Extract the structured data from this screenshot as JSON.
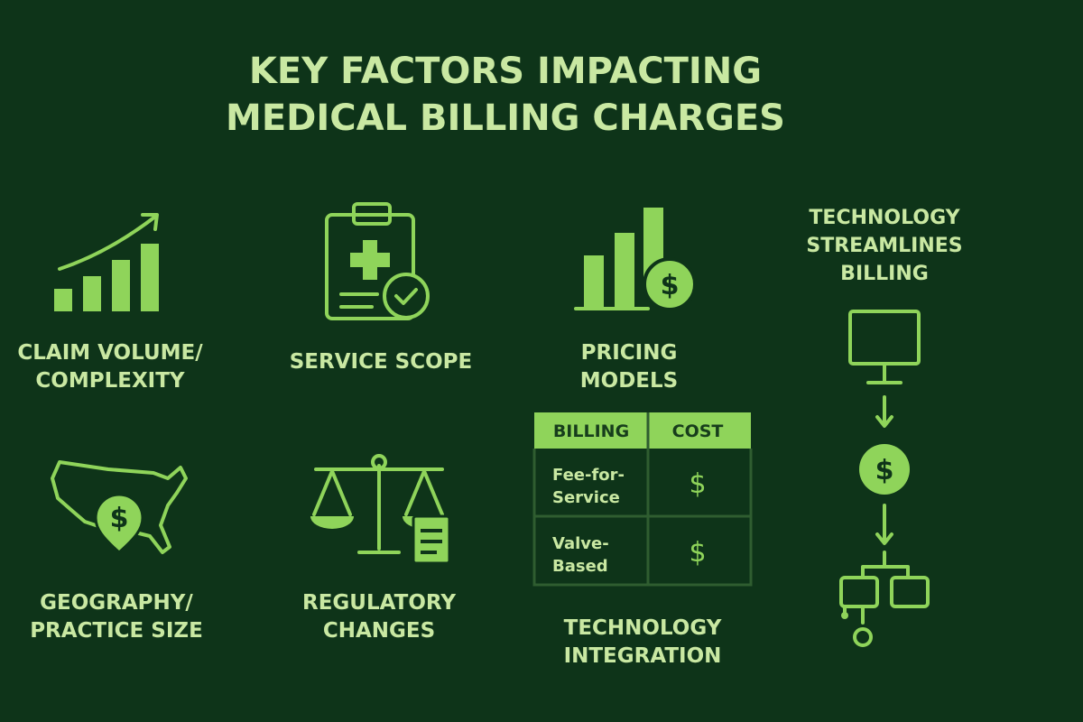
{
  "title": {
    "lines": [
      "KEY FACTORS IMPACTING",
      "MEDICAL BILLING CHARGES"
    ]
  },
  "factors": [
    {
      "lines": [
        "CLAIM VOLUME/",
        "COMPLEXITY"
      ]
    },
    {
      "lines": [
        "SERVICE SCOPE"
      ]
    },
    {
      "lines": [
        "PRICING",
        "MODELS"
      ]
    },
    {
      "lines": [
        "GEOGRAPHY/",
        "PRACTICE SIZE"
      ]
    },
    {
      "lines": [
        "REGULATORY",
        "CHANGES"
      ]
    },
    {
      "lines": [
        "TECHNOLOGY",
        "INTEGRATION"
      ]
    }
  ],
  "sidebar": {
    "lines": [
      "TECHNOLOGY",
      "STREAMLINES",
      "BILLING"
    ]
  },
  "icon_symbol": "$",
  "table": {
    "header": [
      "BILLING",
      "COST"
    ],
    "rows": [
      [
        {
          "lines": [
            "Fee-for-",
            "Service"
          ]
        },
        "$"
      ],
      [
        {
          "lines": [
            "Valve-",
            "Based"
          ]
        },
        "$"
      ]
    ]
  }
}
